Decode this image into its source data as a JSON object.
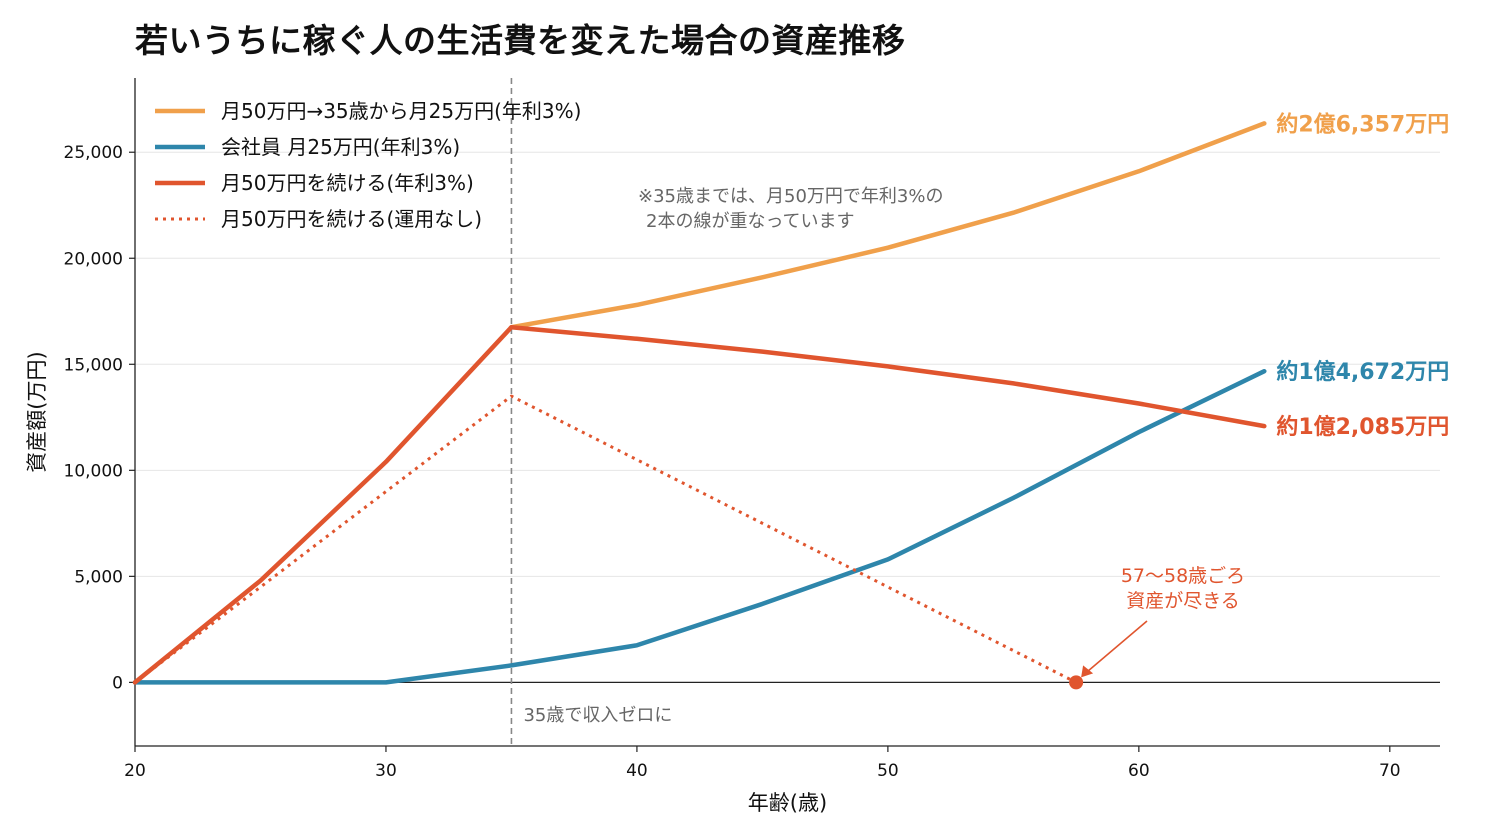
{
  "chart_data": {
    "type": "line",
    "title": "若いうちに稼ぐ人の生活費を変えた場合の資産推移",
    "xlabel": "年齢(歳)",
    "ylabel": "資産額(万円)",
    "xlim": [
      20,
      72
    ],
    "ylim": [
      -3000,
      28500
    ],
    "xticks": [
      20,
      30,
      40,
      50,
      60,
      70
    ],
    "xtick_labels": [
      "20",
      "30",
      "40",
      "50",
      "60",
      "70"
    ],
    "yticks": [
      0,
      5000,
      10000,
      15000,
      20000,
      25000
    ],
    "ytick_labels": [
      "0",
      "5,000",
      "10,000",
      "15,000",
      "20,000",
      "25,000"
    ],
    "grid": "horizontal",
    "legend_position": "top-left",
    "series": [
      {
        "name": "月50万円→35歳から月25万円(年利3%)",
        "color": "#F0A04B",
        "style": "solid",
        "points": [
          [
            35,
            16750
          ],
          [
            40,
            17800
          ],
          [
            45,
            19100
          ],
          [
            50,
            20500
          ],
          [
            55,
            22150
          ],
          [
            60,
            24100
          ],
          [
            65,
            26357
          ]
        ],
        "end_label": "約2億6,357万円"
      },
      {
        "name": "会社員 月25万円(年利3%)",
        "color": "#2E86AB",
        "style": "solid",
        "points": [
          [
            20,
            0
          ],
          [
            30,
            0
          ],
          [
            35,
            800
          ],
          [
            40,
            1750
          ],
          [
            45,
            3700
          ],
          [
            50,
            5800
          ],
          [
            55,
            8700
          ],
          [
            60,
            11800
          ],
          [
            65,
            14672
          ]
        ],
        "end_label": "約1億4,672万円"
      },
      {
        "name": "月50万円を続ける(年利3%)",
        "color": "#E0552E",
        "style": "solid",
        "points": [
          [
            20,
            0
          ],
          [
            25,
            4800
          ],
          [
            30,
            10400
          ],
          [
            35,
            16750
          ],
          [
            40,
            16200
          ],
          [
            45,
            15600
          ],
          [
            50,
            14900
          ],
          [
            55,
            14100
          ],
          [
            60,
            13150
          ],
          [
            65,
            12085
          ]
        ],
        "end_label": "約1億2,085万円"
      },
      {
        "name": "月50万円を続ける(運用なし)",
        "color": "#E0552E",
        "style": "dotted",
        "points": [
          [
            20,
            0
          ],
          [
            25,
            4500
          ],
          [
            30,
            9000
          ],
          [
            35,
            13500
          ],
          [
            40,
            10500
          ],
          [
            45,
            7500
          ],
          [
            50,
            4500
          ],
          [
            55,
            1500
          ],
          [
            57.5,
            0
          ]
        ]
      }
    ],
    "vertical_line": {
      "x": 35,
      "color": "#888888",
      "label": "35歳で収入ゼロに"
    },
    "note": [
      "※35歳までは、月50万円で年利3%の",
      "2本の線が重なっています"
    ],
    "callout": {
      "text": [
        "57〜58歳ごろ",
        "資産が尽きる"
      ],
      "color": "#E0552E",
      "point": [
        57.5,
        0
      ]
    }
  }
}
